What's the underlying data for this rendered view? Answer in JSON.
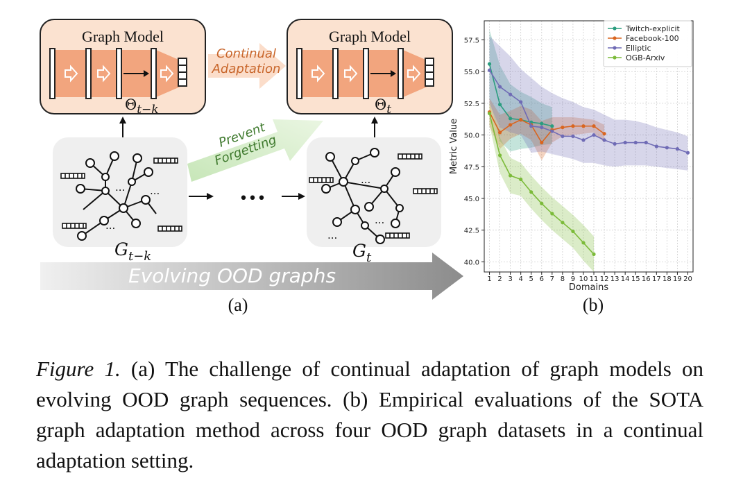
{
  "panel_a": {
    "model_left": {
      "title": "Graph Model",
      "theta": "Θ",
      "theta_sub": "t−k"
    },
    "model_right": {
      "title": "Graph Model",
      "theta": "Θ",
      "theta_sub": "t"
    },
    "continual_adaptation": [
      "Continual",
      "Adaptation"
    ],
    "prevent_forgetting": [
      "Prevent",
      "Forgetting"
    ],
    "graph_left": {
      "label": "G",
      "label_sub": "t−k"
    },
    "graph_right": {
      "label": "G",
      "label_sub": "t"
    },
    "between_dots": "•••",
    "banner": "Evolving OOD graphs",
    "node_dots": "...",
    "sublabel": "(a)",
    "colors": {
      "model_fill": "#fbe2d0",
      "model_stroke": "#222222",
      "band": "#f2a57e",
      "graph_bg": "#efefef",
      "adapt_arrow": "#fbd9c4",
      "forget_arrow": "#d6eccb"
    }
  },
  "panel_b": {
    "sublabel": "(b)"
  },
  "chart_data": {
    "type": "line",
    "xlabel": "Domains",
    "ylabel": "Metric Value",
    "xlim": [
      0.5,
      20.5
    ],
    "ylim": [
      39.2,
      59.0
    ],
    "x_ticks": [
      1,
      2,
      3,
      4,
      5,
      6,
      7,
      8,
      9,
      10,
      11,
      12,
      13,
      14,
      15,
      16,
      17,
      18,
      19,
      20
    ],
    "y_ticks": [
      40.0,
      42.5,
      45.0,
      47.5,
      50.0,
      52.5,
      55.0,
      57.5
    ],
    "y_tick_labels": [
      "40.0",
      "42.5",
      "45.0",
      "47.5",
      "50.0",
      "52.5",
      "55.0",
      "57.5"
    ],
    "grid": true,
    "legend_position": "top-right",
    "series": [
      {
        "name": "Twitch-explicit",
        "color": "#2a9d7f",
        "x": [
          1,
          2,
          3,
          4,
          5,
          6,
          7
        ],
        "values": [
          55.6,
          52.4,
          51.3,
          51.2,
          51.0,
          50.9,
          50.7
        ],
        "upper": [
          58.3,
          55.5,
          54.0,
          53.4,
          53.0,
          52.5,
          52.2
        ],
        "lower": [
          52.8,
          49.5,
          48.7,
          48.9,
          49.0,
          49.2,
          49.3
        ]
      },
      {
        "name": "Facebook-100",
        "color": "#d9651f",
        "x": [
          1,
          2,
          3,
          4,
          5,
          6,
          7,
          8,
          9,
          10,
          11,
          12
        ],
        "values": [
          51.8,
          50.2,
          50.8,
          51.2,
          50.8,
          49.4,
          50.4,
          50.6,
          50.7,
          50.7,
          50.7,
          50.1
        ],
        "upper": [
          52.9,
          51.6,
          51.9,
          52.3,
          52.0,
          51.1,
          51.4,
          51.4,
          51.4,
          51.3,
          51.2,
          50.8
        ],
        "lower": [
          50.7,
          48.9,
          49.7,
          50.1,
          49.6,
          48.0,
          49.4,
          49.9,
          50.0,
          50.1,
          50.2,
          49.4
        ]
      },
      {
        "name": "Elliptic",
        "color": "#6f6bb5",
        "x": [
          1,
          2,
          3,
          4,
          5,
          6,
          7,
          8,
          9,
          10,
          11,
          12,
          13,
          14,
          15,
          16,
          17,
          18,
          19,
          20
        ],
        "values": [
          55.1,
          53.8,
          53.2,
          52.6,
          50.7,
          50.6,
          50.3,
          49.9,
          49.9,
          49.6,
          50.0,
          49.6,
          49.3,
          49.4,
          49.4,
          49.4,
          49.1,
          49.0,
          48.9,
          48.6
        ],
        "upper": [
          57.8,
          57.0,
          56.2,
          55.2,
          54.5,
          53.8,
          53.3,
          52.9,
          52.6,
          52.2,
          52.0,
          51.6,
          51.2,
          51.2,
          51.1,
          50.9,
          50.6,
          50.4,
          50.2,
          49.9
        ],
        "lower": [
          52.4,
          50.6,
          50.2,
          50.0,
          48.6,
          48.7,
          48.5,
          48.3,
          48.1,
          47.8,
          47.8,
          47.6,
          47.5,
          47.6,
          47.6,
          47.6,
          47.5,
          47.4,
          47.3,
          47.2
        ]
      },
      {
        "name": "OGB-Arxiv",
        "color": "#7cbb3a",
        "x": [
          1,
          2,
          3,
          4,
          5,
          6,
          7,
          8,
          9,
          10,
          11
        ],
        "values": [
          51.7,
          48.4,
          46.8,
          46.5,
          45.5,
          44.6,
          43.8,
          43.1,
          42.4,
          41.5,
          40.6
        ],
        "upper": [
          52.6,
          49.8,
          48.2,
          47.8,
          46.8,
          45.9,
          45.1,
          44.4,
          43.7,
          42.9,
          42.0
        ],
        "lower": [
          50.8,
          47.0,
          45.4,
          45.2,
          44.2,
          43.3,
          42.5,
          41.8,
          41.1,
          40.1,
          39.2
        ]
      }
    ]
  },
  "caption": {
    "label": "Figure 1.",
    "text": " (a) The challenge of continual adaptation of graph models on evolving OOD graph sequences. (b) Empirical evaluations of the SOTA graph adaptation method across four OOD graph datasets in a continual adaptation setting."
  }
}
